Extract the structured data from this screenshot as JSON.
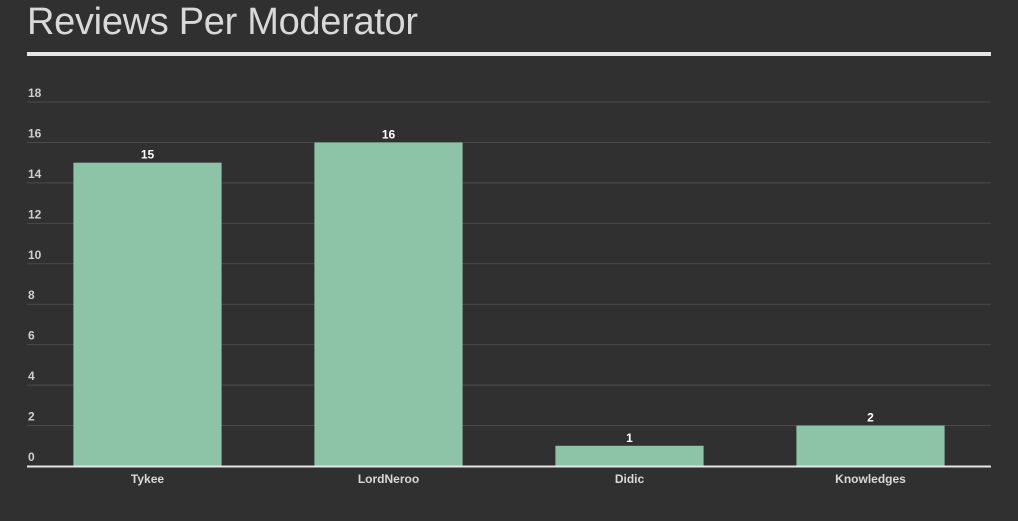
{
  "header": {
    "title": "Reviews Per Moderator"
  },
  "colors": {
    "background": "#303030",
    "bar": "#8dc3a7",
    "grid": "#4a4a4a",
    "axis": "#e6e6e6",
    "title": "#d9d9d9"
  },
  "chart_data": {
    "type": "bar",
    "title": "Reviews Per Moderator",
    "xlabel": "",
    "ylabel": "",
    "categories": [
      "Tykee",
      "LordNeroo",
      "Didic",
      "Knowledges"
    ],
    "values": [
      15,
      16,
      1,
      2
    ],
    "ylim": [
      0,
      18
    ],
    "yticks": [
      0,
      2,
      4,
      6,
      8,
      10,
      12,
      14,
      16,
      18
    ],
    "grid": true,
    "legend": "none",
    "data_labels": true
  }
}
